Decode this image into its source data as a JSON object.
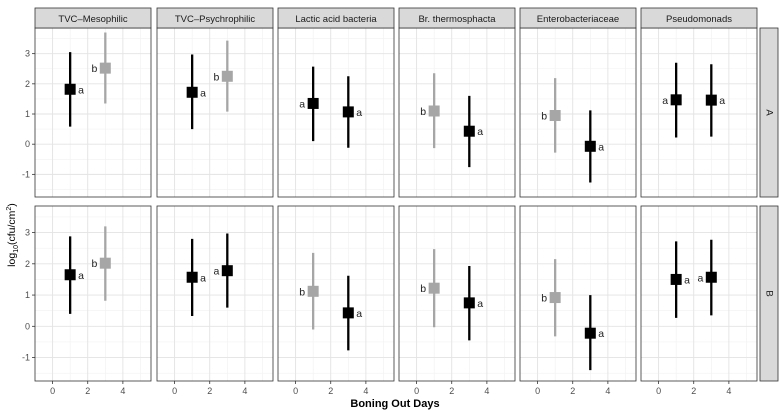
{
  "chart_data": {
    "type": "scatter",
    "subtype": "faceted point-range with compact letter display",
    "xlabel": "Boning Out Days",
    "ylabel_prefix": "log",
    "ylabel_sub": "10",
    "ylabel_main": "(cfu/cm",
    "ylabel_sup": "2",
    "ylabel_suffix": ")",
    "xlim": [
      -1,
      5.6
    ],
    "ylim": [
      -1.75,
      3.85
    ],
    "x_ticks": [
      0,
      2,
      4
    ],
    "x_tick_labels": [
      "0",
      "2",
      "4"
    ],
    "y_ticks": [
      -1,
      0,
      1,
      2,
      3
    ],
    "y_tick_labels": [
      "-1",
      "0",
      "1",
      "2",
      "3"
    ],
    "column_facets": [
      "TVC–Mesophilic",
      "TVC–Psychrophilic",
      "Lactic acid bacteria",
      "Br. thermosphacta",
      "Enterobacteriaceae",
      "Pseudomonads"
    ],
    "row_facets": [
      "A",
      "B"
    ],
    "colors": {
      "dark": "#000000",
      "light": "#a6a6a6",
      "strip": "#d9d9d9",
      "grid_major": "#e3e3e3",
      "grid_minor": "#f1f1f1"
    },
    "panels": [
      {
        "row": "A",
        "col": "TVC–Mesophilic",
        "points": [
          {
            "x": 1,
            "y": 1.82,
            "lo": 0.58,
            "hi": 3.05,
            "shade": "dark",
            "letter": "a",
            "side": "right"
          },
          {
            "x": 3,
            "y": 2.52,
            "lo": 1.35,
            "hi": 3.7,
            "shade": "light",
            "letter": "b",
            "side": "left"
          }
        ]
      },
      {
        "row": "A",
        "col": "TVC–Psychrophilic",
        "points": [
          {
            "x": 1,
            "y": 1.72,
            "lo": 0.5,
            "hi": 2.97,
            "shade": "dark",
            "letter": "a",
            "side": "right"
          },
          {
            "x": 3,
            "y": 2.25,
            "lo": 1.08,
            "hi": 3.43,
            "shade": "light",
            "letter": "b",
            "side": "left"
          }
        ]
      },
      {
        "row": "A",
        "col": "Lactic acid bacteria",
        "points": [
          {
            "x": 1,
            "y": 1.35,
            "lo": 0.1,
            "hi": 2.57,
            "shade": "dark",
            "letter": "a",
            "side": "left"
          },
          {
            "x": 3,
            "y": 1.07,
            "lo": -0.12,
            "hi": 2.25,
            "shade": "dark",
            "letter": "a",
            "side": "right"
          }
        ]
      },
      {
        "row": "A",
        "col": "Br. thermosphacta",
        "points": [
          {
            "x": 1,
            "y": 1.1,
            "lo": -0.13,
            "hi": 2.35,
            "shade": "light",
            "letter": "b",
            "side": "left"
          },
          {
            "x": 3,
            "y": 0.43,
            "lo": -0.76,
            "hi": 1.6,
            "shade": "dark",
            "letter": "a",
            "side": "right"
          }
        ]
      },
      {
        "row": "A",
        "col": "Enterobacteriaceae",
        "points": [
          {
            "x": 1,
            "y": 0.95,
            "lo": -0.28,
            "hi": 2.19,
            "shade": "light",
            "letter": "b",
            "side": "left"
          },
          {
            "x": 3,
            "y": -0.07,
            "lo": -1.27,
            "hi": 1.12,
            "shade": "dark",
            "letter": "a",
            "side": "right"
          }
        ]
      },
      {
        "row": "A",
        "col": "Pseudomonads",
        "points": [
          {
            "x": 1,
            "y": 1.47,
            "lo": 0.22,
            "hi": 2.7,
            "shade": "dark",
            "letter": "a",
            "side": "left"
          },
          {
            "x": 3,
            "y": 1.46,
            "lo": 0.25,
            "hi": 2.65,
            "shade": "dark",
            "letter": "a",
            "side": "right"
          }
        ]
      },
      {
        "row": "B",
        "col": "TVC–Mesophilic",
        "points": [
          {
            "x": 1,
            "y": 1.65,
            "lo": 0.4,
            "hi": 2.88,
            "shade": "dark",
            "letter": "a",
            "side": "right"
          },
          {
            "x": 3,
            "y": 2.02,
            "lo": 0.82,
            "hi": 3.2,
            "shade": "light",
            "letter": "b",
            "side": "left"
          }
        ]
      },
      {
        "row": "B",
        "col": "TVC–Psychrophilic",
        "points": [
          {
            "x": 1,
            "y": 1.57,
            "lo": 0.33,
            "hi": 2.8,
            "shade": "dark",
            "letter": "a",
            "side": "right"
          },
          {
            "x": 3,
            "y": 1.78,
            "lo": 0.6,
            "hi": 2.97,
            "shade": "dark",
            "letter": "a",
            "side": "left"
          }
        ]
      },
      {
        "row": "B",
        "col": "Lactic acid bacteria",
        "points": [
          {
            "x": 1,
            "y": 1.12,
            "lo": -0.1,
            "hi": 2.35,
            "shade": "light",
            "letter": "b",
            "side": "left"
          },
          {
            "x": 3,
            "y": 0.43,
            "lo": -0.77,
            "hi": 1.62,
            "shade": "dark",
            "letter": "a",
            "side": "right"
          }
        ]
      },
      {
        "row": "B",
        "col": "Br. thermosphacta",
        "points": [
          {
            "x": 1,
            "y": 1.22,
            "lo": -0.03,
            "hi": 2.47,
            "shade": "light",
            "letter": "b",
            "side": "left"
          },
          {
            "x": 3,
            "y": 0.75,
            "lo": -0.45,
            "hi": 1.93,
            "shade": "dark",
            "letter": "a",
            "side": "right"
          }
        ]
      },
      {
        "row": "B",
        "col": "Enterobacteriaceae",
        "points": [
          {
            "x": 1,
            "y": 0.92,
            "lo": -0.32,
            "hi": 2.15,
            "shade": "light",
            "letter": "b",
            "side": "left"
          },
          {
            "x": 3,
            "y": -0.22,
            "lo": -1.4,
            "hi": 1.0,
            "shade": "dark",
            "letter": "a",
            "side": "right"
          }
        ]
      },
      {
        "row": "B",
        "col": "Pseudomonads",
        "points": [
          {
            "x": 1,
            "y": 1.5,
            "lo": 0.27,
            "hi": 2.72,
            "shade": "dark",
            "letter": "a",
            "side": "right"
          },
          {
            "x": 3,
            "y": 1.57,
            "lo": 0.35,
            "hi": 2.77,
            "shade": "dark",
            "letter": "a",
            "side": "left"
          }
        ]
      }
    ]
  }
}
